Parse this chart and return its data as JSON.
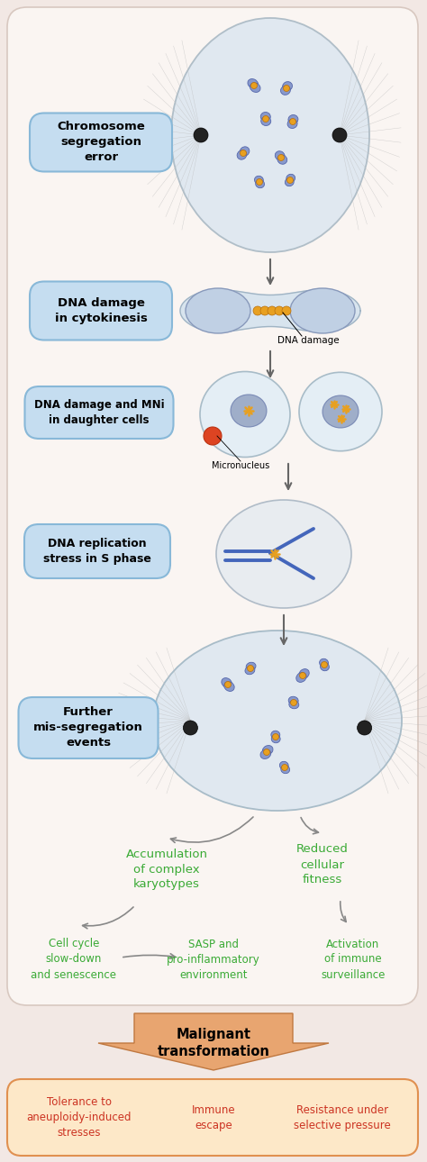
{
  "bg_color": "#f2e8e4",
  "label_box_color": "#c5ddf0",
  "label_box_edge": "#88b8d8",
  "chrom_color": "#8899cc",
  "kinetochore_color": "#e8a020",
  "arrow_color": "#666666",
  "green_text": "#3aaa35",
  "red_text": "#cc3322",
  "bottom_box_fill": "#fde8c8",
  "bottom_box_edge": "#e09050",
  "malignant_arrow_fill": "#e8a570",
  "labels": [
    "Chromosome\nsegregation\nerror",
    "DNA damage\nin cytokinesis",
    "DNA damage and MNi\nin daughter cells",
    "DNA replication\nstress in S phase",
    "Further\nmis-segregation\nevents"
  ],
  "green_labels_top": [
    "Accumulation\nof complex\nkaryotypes",
    "Reduced\ncellular\nfitness"
  ],
  "green_labels_bottom": [
    "Cell cycle\nslow-down\nand senescence",
    "SASP and\npro-inflammatory\nenvironment",
    "Activation\nof immune\nsurveillance"
  ],
  "bottom_labels": [
    "Tolerance to\naneuploidy-induced\nstresses",
    "Immune\nescape",
    "Resistance under\nselective pressure"
  ],
  "malignant_text": "Malignant\ntransformation"
}
